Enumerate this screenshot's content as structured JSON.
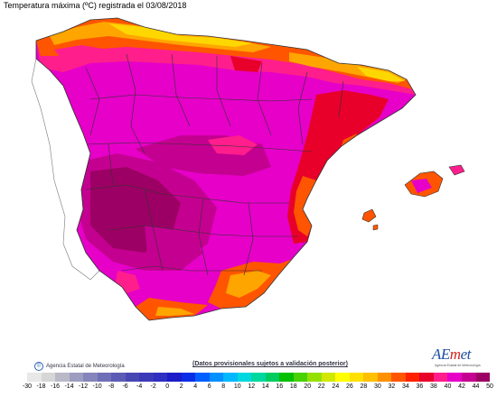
{
  "title": "Temperatura máxima (ºC) registrada el 03/08/2018",
  "agency_credit": "Agencia Estatal de Meteorología",
  "disclaimer": "(Datos provisionales sujetos a validación posterior)",
  "logo": {
    "word_a": "AE",
    "word_m": "m",
    "word_b": "et",
    "subtitle": "Agencia Estatal de Meteorología"
  },
  "colors": {
    "sea": "#ffffff",
    "border": "#333333",
    "t28_30": "#ffd700",
    "t30_32": "#ffa500",
    "t32_34": "#ff5500",
    "t34_36": "#e8002a",
    "t36_38": "#ff1e8c",
    "t38_40": "#e600c8",
    "t40_42": "#c40090",
    "t42_44": "#9c0064"
  },
  "legend": {
    "labels": [
      "-30",
      "-18",
      "-16",
      "-14",
      "-12",
      "-10",
      "-8",
      "-6",
      "-4",
      "-2",
      "0",
      "2",
      "4",
      "6",
      "8",
      "10",
      "12",
      "14",
      "16",
      "18",
      "20",
      "22",
      "24",
      "26",
      "28",
      "30",
      "32",
      "34",
      "36",
      "38",
      "40",
      "42",
      "44",
      "50"
    ],
    "colors": [
      "#e8e8e8",
      "#d6d6d6",
      "#b9b9c8",
      "#9d9dc0",
      "#8585bb",
      "#6f6fb8",
      "#5b5bb5",
      "#4747b4",
      "#3a3ab8",
      "#2f2fc2",
      "#1c1cc8",
      "#0a2ee6",
      "#0060ff",
      "#0090ff",
      "#00b8ff",
      "#00d8e0",
      "#00d8a0",
      "#00cc60",
      "#00c000",
      "#48d200",
      "#96e000",
      "#d2e800",
      "#ffff00",
      "#ffe000",
      "#ffc000",
      "#ff9000",
      "#ff5500",
      "#ff2000",
      "#e8002a",
      "#ff1e8c",
      "#e600c8",
      "#c40090",
      "#9c0064"
    ]
  }
}
